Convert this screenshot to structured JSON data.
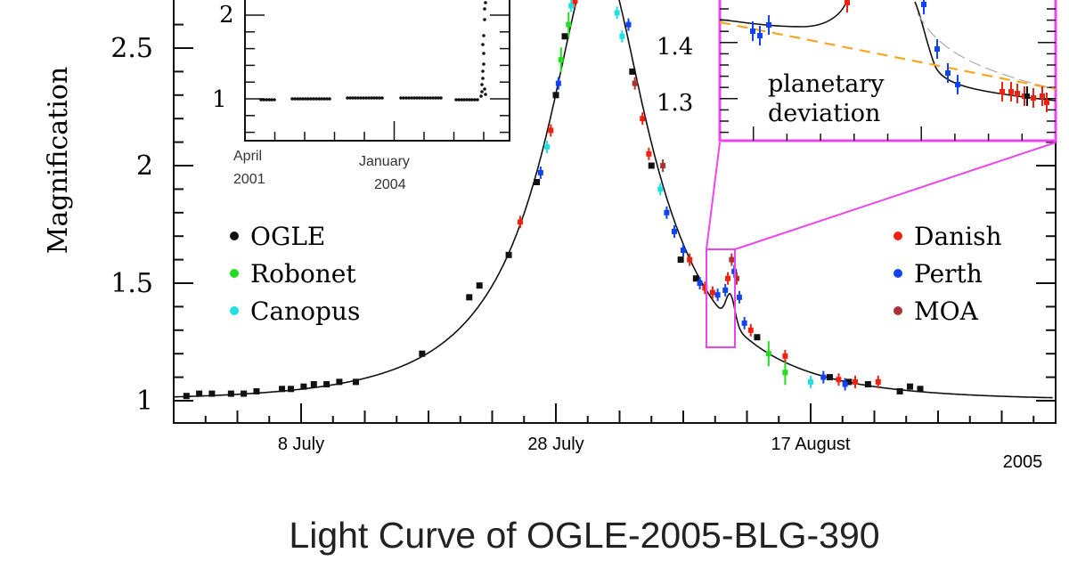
{
  "chart_data": {
    "type": "scatter",
    "title": "Light Curve of OGLE-2005-BLG-390",
    "xlabel": "",
    "ylabel": "Magnification",
    "year_label": "2005",
    "x_unit": "days after 8 July 2005",
    "xlim": [
      -10,
      59
    ],
    "ylim": [
      0.905,
      2.7
    ],
    "xticks": [
      {
        "value": 0,
        "label": "8 July"
      },
      {
        "value": 20,
        "label": "28 July"
      },
      {
        "value": 40,
        "label": "17 August"
      }
    ],
    "yticks": [
      {
        "value": 1,
        "label": "1"
      },
      {
        "value": 1.5,
        "label": "1.5"
      },
      {
        "value": 2,
        "label": "2"
      },
      {
        "value": 2.5,
        "label": "2.5"
      }
    ],
    "model": {
      "t0": 23.3,
      "u0": 0.36,
      "tE": 11,
      "planet_t": 33.7,
      "planet_amp": 0.12,
      "planet_width": 0.35
    },
    "legend_left": [
      {
        "name": "OGLE",
        "color": "#111111"
      },
      {
        "name": "Robonet",
        "color": "#22dd22"
      },
      {
        "name": "Canopus",
        "color": "#22e0e0"
      }
    ],
    "legend_right": [
      {
        "name": "Danish",
        "color": "#ee2211"
      },
      {
        "name": "Perth",
        "color": "#1144ee"
      },
      {
        "name": "MOA",
        "color": "#aa3333"
      }
    ],
    "series": [
      {
        "name": "OGLE",
        "points": [
          [
            -9,
            1.02
          ],
          [
            -8,
            1.03
          ],
          [
            -7,
            1.03
          ],
          [
            -5.5,
            1.03
          ],
          [
            -4.5,
            1.03
          ],
          [
            -3.5,
            1.04
          ],
          [
            -1.5,
            1.05
          ],
          [
            -0.8,
            1.05
          ],
          [
            0.2,
            1.06
          ],
          [
            1,
            1.07
          ],
          [
            2,
            1.07
          ],
          [
            3,
            1.08
          ],
          [
            4.3,
            1.08
          ],
          [
            9.5,
            1.2
          ],
          [
            13.2,
            1.44
          ],
          [
            14,
            1.49
          ],
          [
            16.3,
            1.62
          ],
          [
            18.5,
            1.93
          ],
          [
            20,
            2.3
          ],
          [
            20.7,
            2.55
          ],
          [
            26,
            2.4
          ],
          [
            27.5,
            2.0
          ],
          [
            29.8,
            1.6
          ],
          [
            31,
            1.52
          ],
          [
            35.8,
            1.27
          ],
          [
            41.5,
            1.1
          ],
          [
            43,
            1.08
          ],
          [
            44.5,
            1.07
          ],
          [
            47,
            1.04
          ],
          [
            47.8,
            1.06
          ],
          [
            48.6,
            1.05
          ]
        ]
      },
      {
        "name": "Robonet",
        "points": [
          [
            20.4,
            2.45
          ],
          [
            21,
            2.6
          ],
          [
            36.7,
            1.2
          ],
          [
            38,
            1.12
          ]
        ]
      },
      {
        "name": "Canopus",
        "points": [
          [
            19.3,
            2.08
          ],
          [
            21.2,
            2.68
          ],
          [
            24.8,
            2.65
          ],
          [
            25.2,
            2.55
          ],
          [
            28.2,
            1.9
          ],
          [
            40,
            1.08
          ]
        ]
      },
      {
        "name": "Danish",
        "points": [
          [
            17.2,
            1.76
          ],
          [
            19.6,
            2.15
          ],
          [
            21.5,
            2.7
          ],
          [
            26.8,
            2.2
          ],
          [
            27.3,
            2.05
          ],
          [
            30.5,
            1.6
          ],
          [
            31.7,
            1.48
          ],
          [
            32.3,
            1.46
          ],
          [
            33.5,
            1.52
          ],
          [
            35.3,
            1.3
          ],
          [
            38,
            1.19
          ],
          [
            42.2,
            1.09
          ],
          [
            43.5,
            1.08
          ],
          [
            45.3,
            1.08
          ]
        ]
      },
      {
        "name": "Perth",
        "points": [
          [
            18.8,
            1.97
          ],
          [
            20.2,
            2.35
          ],
          [
            25.7,
            2.6
          ],
          [
            28.7,
            1.8
          ],
          [
            29.3,
            1.72
          ],
          [
            30,
            1.64
          ],
          [
            31.3,
            1.5
          ],
          [
            32.7,
            1.45
          ],
          [
            33.3,
            1.47
          ],
          [
            34,
            1.55
          ],
          [
            34.4,
            1.44
          ],
          [
            34.8,
            1.33
          ],
          [
            41,
            1.1
          ],
          [
            42.7,
            1.07
          ]
        ]
      },
      {
        "name": "MOA",
        "points": [
          [
            26.2,
            2.35
          ],
          [
            28.4,
            2.0
          ],
          [
            33.8,
            1.6
          ],
          [
            34.2,
            1.52
          ]
        ]
      }
    ],
    "inset_left": {
      "yticks": [
        {
          "value": 1,
          "label": "1"
        },
        {
          "value": 2,
          "label": "2"
        }
      ],
      "xlabels": [
        {
          "line1": "April",
          "line2": "2001"
        },
        {
          "line1": "January",
          "line2": "2004"
        }
      ]
    },
    "inset_right": {
      "yticks": [
        {
          "value": 1.3,
          "label": "1.3"
        },
        {
          "value": 1.4,
          "label": "1.4"
        }
      ],
      "annotation_line1": "planetary",
      "annotation_line2": "deviation",
      "border_color": "#ee44ee",
      "no_planet_model_color": "#f5a623"
    }
  }
}
